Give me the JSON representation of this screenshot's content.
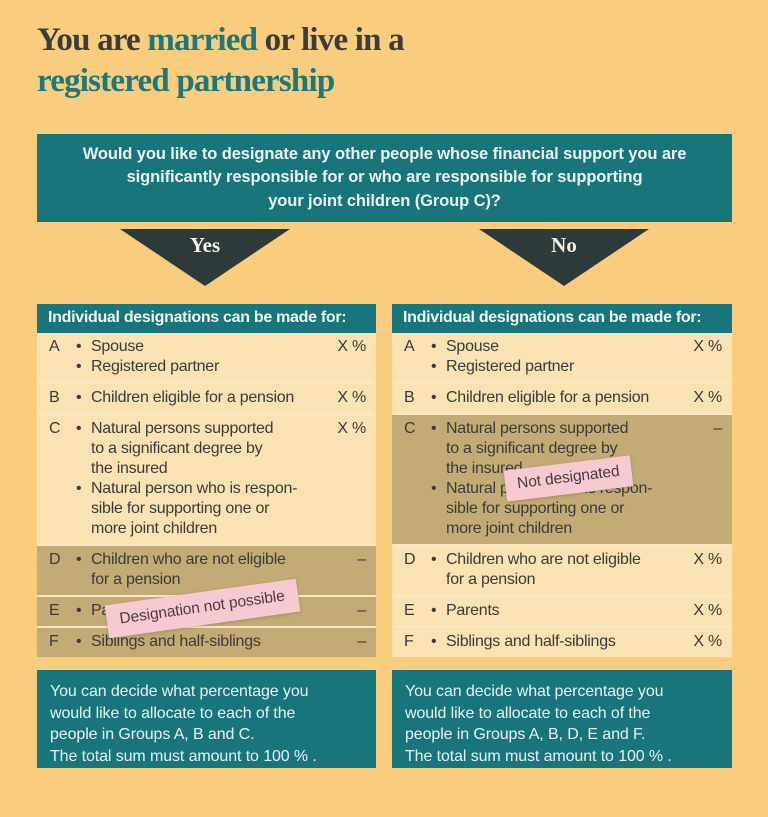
{
  "colors": {
    "background": "#F9CD7D",
    "teal": "#17757B",
    "dark_charcoal": "#2E3A3A",
    "cream_row": "#FAE2B2",
    "khaki_row": "#C2AB74",
    "row_separator": "#F7E7C2",
    "pink_sticker": "#F7C9D1",
    "title_dark": "#3A3D3C",
    "title_teal": "#1D777B",
    "body_text": "#3B3B3A"
  },
  "title": {
    "part1": "You are ",
    "highlight1": "married",
    "part2": " or live in a",
    "highlight2": "registered partnership"
  },
  "question": {
    "text": "Would you like to designate any other people whose financial support you are\nsignificantly responsible for or who are responsible for supporting\nyour joint children (Group C)?"
  },
  "branches": [
    {
      "label": "Yes",
      "sticker": "Designation not possible",
      "note": "You can decide what percentage you\nwould like to allocate to each of the\npeople in Groups A, B and C.\nThe total sum must amount to 100 % ."
    },
    {
      "label": "No",
      "sticker": "Not designated",
      "note": "You can decide what percentage you\nwould like to allocate to each of the\npeople in Groups A, B, D, E and F.\nThe total sum must amount to 100 % ."
    }
  ],
  "tables": [
    {
      "header": "Individual designations can be made for:",
      "rows": [
        {
          "letter": "A",
          "bullets": [
            "Spouse",
            "Registered partner"
          ],
          "value": "X %",
          "shade": "cream"
        },
        {
          "letter": "B",
          "bullets": [
            "Children eligible for a pension"
          ],
          "value": "X %",
          "shade": "cream"
        },
        {
          "letter": "C",
          "bullets": [
            "Natural persons supported\nto a significant degree by\nthe insured",
            "Natural person who is respon-\nsible for supporting one or\nmore joint children"
          ],
          "value": "X %",
          "shade": "cream"
        },
        {
          "letter": "D",
          "bullets": [
            "Children who are not eligible\nfor a pension"
          ],
          "value": "–",
          "shade": "khaki"
        },
        {
          "letter": "E",
          "bullets": [
            "Parents"
          ],
          "value": "–",
          "shade": "khaki"
        },
        {
          "letter": "F",
          "bullets": [
            "Siblings and half-siblings"
          ],
          "value": "–",
          "shade": "khaki"
        }
      ]
    },
    {
      "header": "Individual designations can be made for:",
      "rows": [
        {
          "letter": "A",
          "bullets": [
            "Spouse",
            "Registered partner"
          ],
          "value": "X %",
          "shade": "cream"
        },
        {
          "letter": "B",
          "bullets": [
            "Children eligible for a pension"
          ],
          "value": "X %",
          "shade": "cream"
        },
        {
          "letter": "C",
          "bullets": [
            "Natural persons supported\nto a significant degree by\nthe insured",
            "Natural person who is respon-\nsible for supporting one or\nmore joint children"
          ],
          "value": "–",
          "shade": "khaki"
        },
        {
          "letter": "D",
          "bullets": [
            "Children who are not eligible\nfor a pension"
          ],
          "value": "X %",
          "shade": "cream"
        },
        {
          "letter": "E",
          "bullets": [
            "Parents"
          ],
          "value": "X %",
          "shade": "cream"
        },
        {
          "letter": "F",
          "bullets": [
            "Siblings and half-siblings"
          ],
          "value": "X %",
          "shade": "cream"
        }
      ]
    }
  ]
}
